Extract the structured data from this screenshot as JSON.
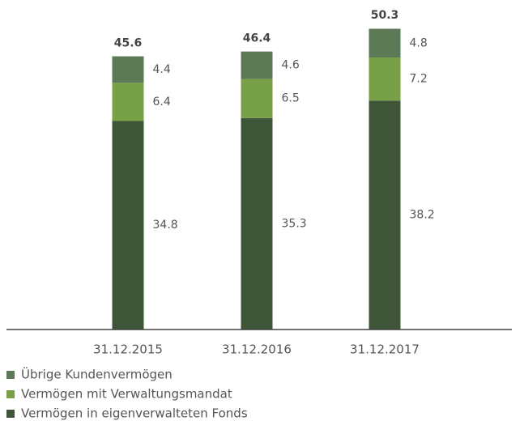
{
  "chart_data": {
    "type": "bar",
    "stacked": true,
    "categories": [
      "31.12.2015",
      "31.12.2016",
      "31.12.2017"
    ],
    "series": [
      {
        "name": "Vermögen in eigenverwalteten Fonds",
        "color": "#3e5637",
        "values": [
          34.8,
          35.3,
          38.2
        ]
      },
      {
        "name": "Vermögen mit Verwaltungsmandat",
        "color": "#78a046",
        "values": [
          6.4,
          6.5,
          7.2
        ]
      },
      {
        "name": "Übrige Kundenvermögen",
        "color": "#5b7a55",
        "values": [
          4.4,
          4.6,
          4.8
        ]
      }
    ],
    "totals": [
      45.6,
      46.4,
      50.3
    ],
    "ylim": [
      0,
      55
    ]
  }
}
